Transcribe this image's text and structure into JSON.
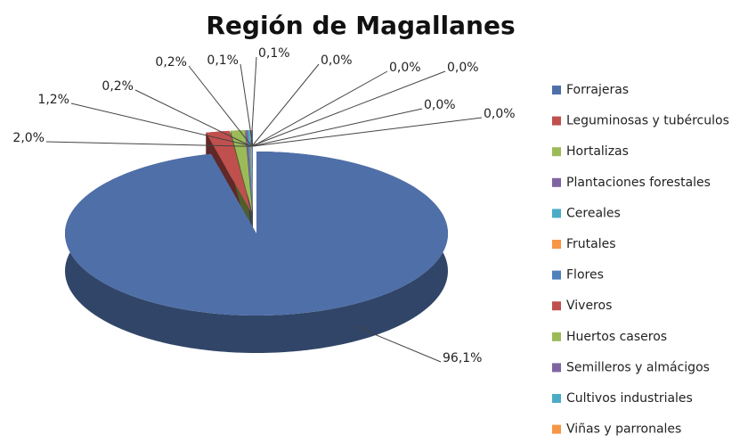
{
  "chart_data": {
    "type": "pie3d",
    "title": "Región de Magallanes",
    "categories": [
      "Forrajeras",
      "Leguminosas y tubérculos",
      "Hortalizas",
      "Plantaciones forestales",
      "Cereales",
      "Frutales",
      "Flores",
      "Viveros",
      "Huertos caseros",
      "Semilleros y almácigos",
      "Cultivos industriales",
      "Viñas y parronales"
    ],
    "values": [
      96.1,
      2.0,
      1.2,
      0.2,
      0.2,
      0.1,
      0.1,
      0.0,
      0.0,
      0.0,
      0.0,
      0.0
    ],
    "value_labels": [
      "96,1%",
      "2,0%",
      "1,2%",
      "0,2%",
      "0,2%",
      "0,1%",
      "0,1%",
      "0,0%",
      "0,0%",
      "0,0%",
      "0,0%",
      "0,0%"
    ],
    "colors": [
      "#4f6fa8",
      "#c0504d",
      "#9bbb59",
      "#8064a2",
      "#4bacc6",
      "#f79646",
      "#4f81bd",
      "#c0504d",
      "#9bbb59",
      "#8064a2",
      "#4bacc6",
      "#f79646"
    ],
    "legend": "right"
  }
}
